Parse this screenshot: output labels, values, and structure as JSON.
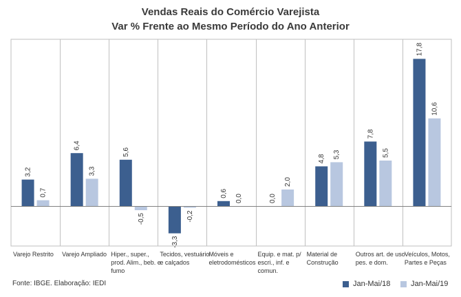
{
  "title_line1": "Vendas Reais do Comércio Varejista",
  "title_line2": "Var % Frente ao Mesmo Período do Ano Anterior",
  "source": "Fonte: IBGE. Elaboração: IEDI",
  "colors": {
    "series1": "#3c5f8f",
    "series2": "#b8c7e0",
    "axis": "#808080",
    "grid": "#bfbfbf"
  },
  "chart_data": {
    "type": "bar",
    "categories": [
      "Varejo Restrito",
      "Varejo Ampliado",
      "Hiper., super., prod. Alim., beb. e fumo",
      "Tecidos, vestuário e calçados",
      "Móveis e eletrodomésticos",
      "Equip. e mat. p/ escri., inf. e comun.",
      "Material de Construção",
      "Outros art. de uso pes. e dom.",
      "Veículos, Motos, Partes e Peças"
    ],
    "category_lines": [
      [
        "Varejo Restrito"
      ],
      [
        "Varejo Ampliado"
      ],
      [
        "Hiper., super.,",
        "prod. Alim., beb. e",
        "fumo"
      ],
      [
        "Tecidos, vestuário",
        "e calçados"
      ],
      [
        "Móveis e",
        "eletrodomésticos"
      ],
      [
        "Equip. e mat. p/",
        "escri., inf. e",
        "comun."
      ],
      [
        "Material de",
        "Construção"
      ],
      [
        "Outros art. de uso",
        "pes. e dom."
      ],
      [
        "Veículos, Motos,",
        "Partes e Peças"
      ]
    ],
    "series": [
      {
        "name": "Jan-Mai/18",
        "values": [
          3.2,
          6.4,
          5.6,
          -3.3,
          0.6,
          0.0,
          4.8,
          7.8,
          17.8
        ],
        "labels": [
          "3,2",
          "6,4",
          "5,6",
          "-3,3",
          "0,6",
          "0,0",
          "4,8",
          "7,8",
          "17,8"
        ]
      },
      {
        "name": "Jan-Mai/19",
        "values": [
          0.7,
          3.3,
          -0.5,
          -0.2,
          0.0,
          2.0,
          5.3,
          5.5,
          10.6
        ],
        "labels": [
          "0,7",
          "3,3",
          "-0,5",
          "-0,2",
          "0,0",
          "2,0",
          "5,3",
          "5,5",
          "10,6"
        ]
      }
    ],
    "ylim": [
      -5,
      20
    ],
    "legend_position": "bottom-right"
  }
}
